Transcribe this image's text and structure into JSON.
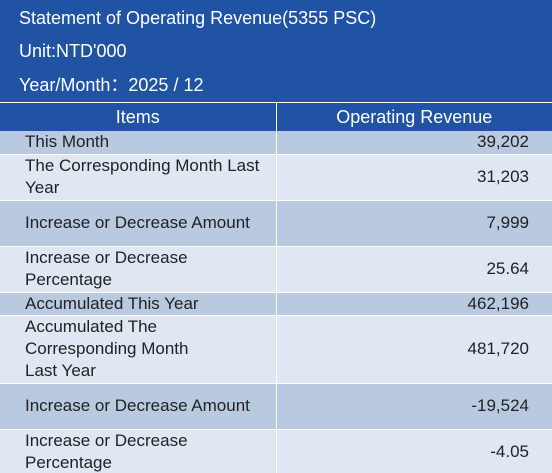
{
  "header": {
    "title": "Statement of Operating Revenue(5355 PSC)",
    "unit": "Unit:NTD'000",
    "period": "Year/Month：2025 / 12"
  },
  "table": {
    "columns": [
      "Items",
      "Operating Revenue"
    ],
    "rows": [
      {
        "item": "This Month",
        "value": "39,202"
      },
      {
        "item": "The Corresponding Month Last Year",
        "value": "31,203"
      },
      {
        "item": "Increase or Decrease Amount",
        "value": "7,999"
      },
      {
        "item": "Increase or Decrease Percentage",
        "value": "25.64"
      },
      {
        "item": "Accumulated This Year",
        "value": "462,196"
      },
      {
        "item": "Accumulated The Corresponding Month Last Year",
        "value": "481,720"
      },
      {
        "item": "Increase or Decrease Amount",
        "value": "-19,524"
      },
      {
        "item": "Increase or Decrease Percentage",
        "value": "-4.05"
      }
    ]
  },
  "colors": {
    "header_bg": "#2153a4",
    "row_dark": "#b8c9e0",
    "row_light": "#dfe7f2"
  }
}
